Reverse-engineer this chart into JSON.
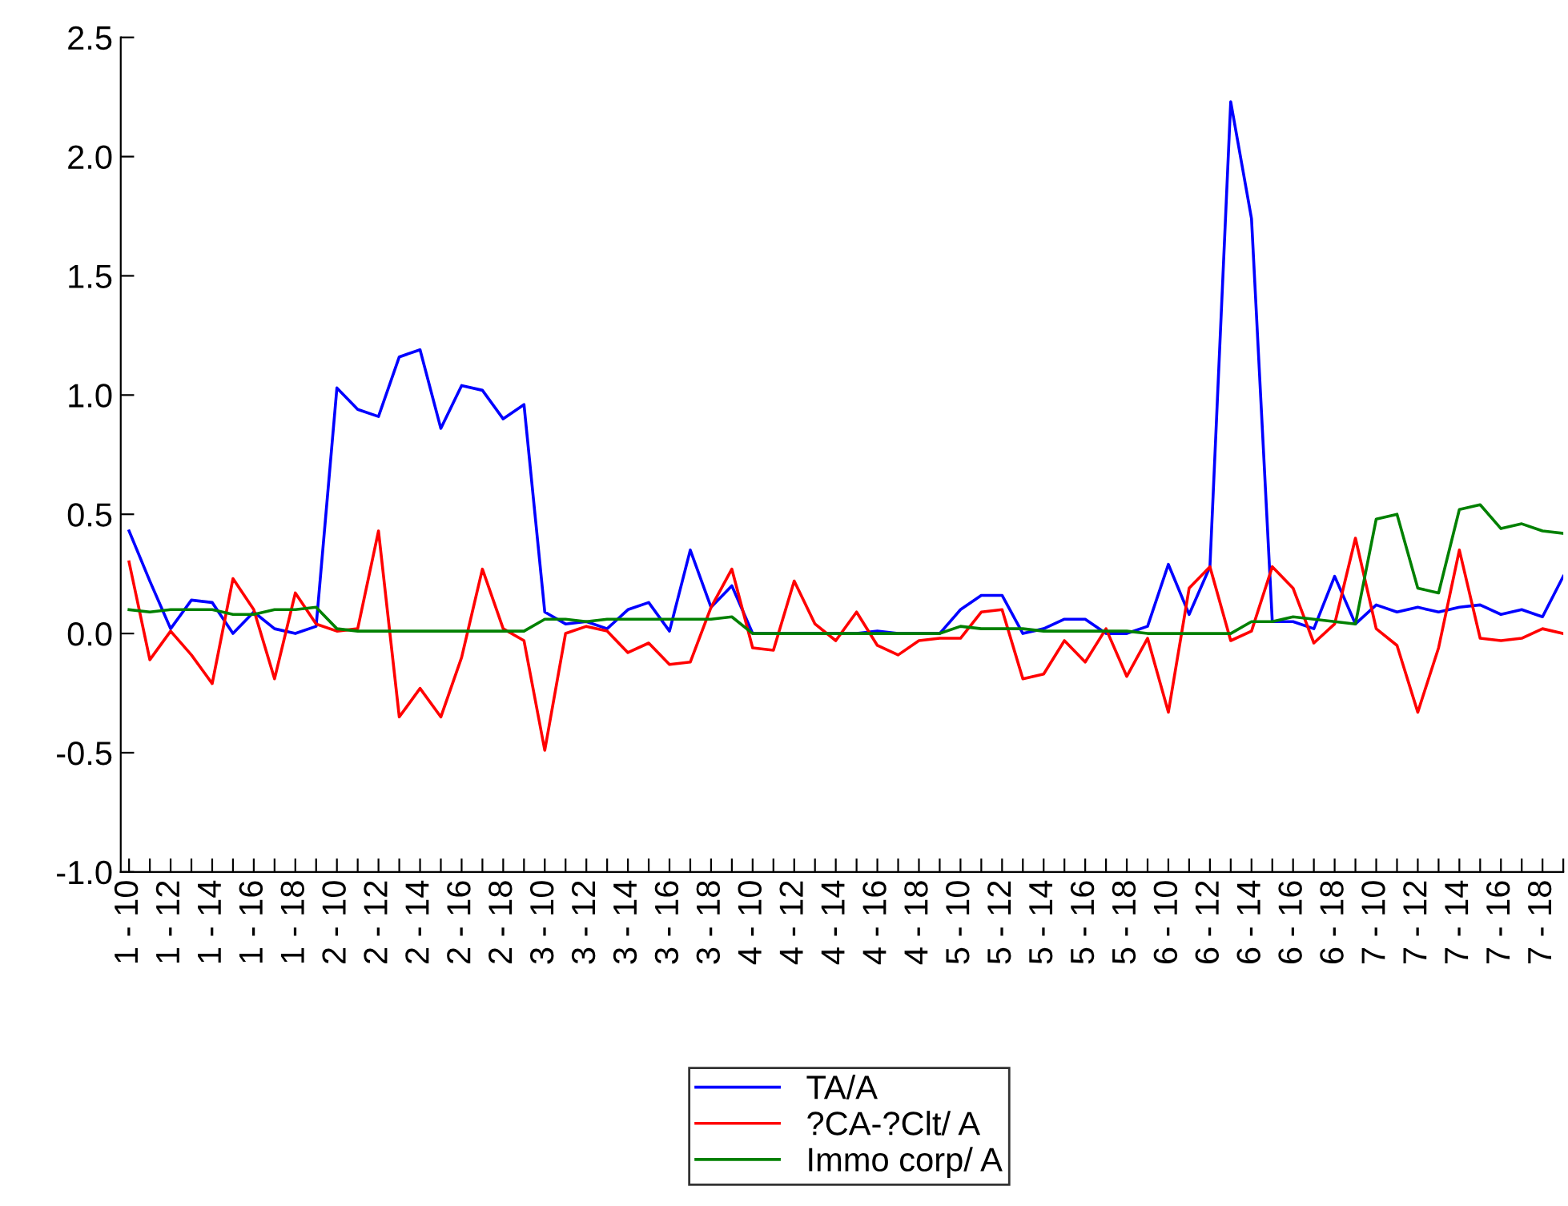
{
  "chart_data": {
    "type": "line",
    "categories": [
      "1 - 10",
      null,
      "1 - 12",
      null,
      "1 - 14",
      null,
      "1 - 16",
      null,
      "1 - 18",
      null,
      "2 - 10",
      null,
      "2 - 12",
      null,
      "2 - 14",
      null,
      "2 - 16",
      null,
      "2 - 18",
      null,
      "3 - 10",
      null,
      "3 - 12",
      null,
      "3 - 14",
      null,
      "3 - 16",
      null,
      "3 - 18",
      null,
      "4 - 10",
      null,
      "4 - 12",
      null,
      "4 - 14",
      null,
      "4 - 16",
      null,
      "4 - 18",
      null,
      "5 - 10",
      null,
      "5 - 12",
      null,
      "5 - 14",
      null,
      "5 - 16",
      null,
      "5 - 18",
      null,
      "6 - 10",
      null,
      "6 - 12",
      null,
      "6 - 14",
      null,
      "6 - 16",
      null,
      "6 - 18",
      null,
      "7 - 10",
      null,
      "7 - 12",
      null,
      "7 - 14",
      null,
      "7 - 16",
      null,
      "7 - 18",
      null
    ],
    "series": [
      {
        "name": "TA/A",
        "color": "#0000ff",
        "values": [
          0.43,
          0.22,
          0.02,
          0.14,
          0.13,
          0.0,
          0.09,
          0.02,
          0.0,
          0.03,
          1.03,
          0.94,
          0.91,
          1.16,
          1.19,
          0.86,
          1.04,
          1.02,
          0.9,
          0.96,
          0.09,
          0.04,
          0.05,
          0.02,
          0.1,
          0.13,
          0.01,
          0.35,
          0.11,
          0.2,
          0.0,
          0.0,
          0.0,
          0.0,
          0.0,
          0.0,
          0.01,
          0.0,
          0.0,
          0.0,
          0.1,
          0.16,
          0.16,
          0.0,
          0.02,
          0.06,
          0.06,
          0.0,
          0.0,
          0.03,
          0.29,
          0.08,
          0.28,
          2.23,
          1.74,
          0.05,
          0.05,
          0.02,
          0.24,
          0.04,
          0.12,
          0.09,
          0.11,
          0.09,
          0.11,
          0.12,
          0.08,
          0.1,
          0.07,
          0.24
        ]
      },
      {
        "name": "?CA-?Clt/ A",
        "color": "#ff0000",
        "values": [
          0.3,
          -0.11,
          0.01,
          -0.09,
          -0.21,
          0.23,
          0.1,
          -0.19,
          0.17,
          0.04,
          0.01,
          0.02,
          0.43,
          -0.35,
          -0.23,
          -0.35,
          -0.1,
          0.27,
          0.02,
          -0.03,
          -0.49,
          0.0,
          0.03,
          0.01,
          -0.08,
          -0.04,
          -0.13,
          -0.12,
          0.11,
          0.27,
          -0.06,
          -0.07,
          0.22,
          0.04,
          -0.03,
          0.09,
          -0.05,
          -0.09,
          -0.03,
          -0.02,
          -0.02,
          0.09,
          0.1,
          -0.19,
          -0.17,
          -0.03,
          -0.12,
          0.02,
          -0.18,
          -0.02,
          -0.33,
          0.19,
          0.28,
          -0.03,
          0.01,
          0.28,
          0.19,
          -0.04,
          0.04,
          0.4,
          0.02,
          -0.05,
          -0.33,
          -0.06,
          0.35,
          -0.02,
          -0.03,
          -0.02,
          0.02,
          0.0
        ]
      },
      {
        "name": "Immo corp/ A",
        "color": "#008000",
        "values": [
          0.1,
          0.09,
          0.1,
          0.1,
          0.1,
          0.08,
          0.08,
          0.1,
          0.1,
          0.11,
          0.02,
          0.01,
          0.01,
          0.01,
          0.01,
          0.01,
          0.01,
          0.01,
          0.01,
          0.01,
          0.06,
          0.06,
          0.05,
          0.06,
          0.06,
          0.06,
          0.06,
          0.06,
          0.06,
          0.07,
          0.0,
          0.0,
          0.0,
          0.0,
          0.0,
          0.0,
          0.0,
          0.0,
          0.0,
          0.0,
          0.03,
          0.02,
          0.02,
          0.02,
          0.01,
          0.01,
          0.01,
          0.01,
          0.01,
          0.0,
          0.0,
          0.0,
          0.0,
          0.0,
          0.05,
          0.05,
          0.07,
          0.06,
          0.05,
          0.04,
          0.48,
          0.5,
          0.19,
          0.17,
          0.52,
          0.54,
          0.44,
          0.46,
          0.43,
          0.42
        ]
      }
    ],
    "ylim": [
      -1.0,
      2.5
    ],
    "yticks": [
      {
        "value": -1.0,
        "label": "-1.0"
      },
      {
        "value": -0.5,
        "label": "-0.5"
      },
      {
        "value": 0.0,
        "label": "0.0"
      },
      {
        "value": 0.5,
        "label": "0.5"
      },
      {
        "value": 1.0,
        "label": "1.0"
      },
      {
        "value": 1.5,
        "label": "1.5"
      },
      {
        "value": 2.0,
        "label": "2.0"
      },
      {
        "value": 2.5,
        "label": "2.5"
      }
    ],
    "grid": false,
    "legend": "bottom",
    "marker": "none",
    "line_style": "solid"
  }
}
